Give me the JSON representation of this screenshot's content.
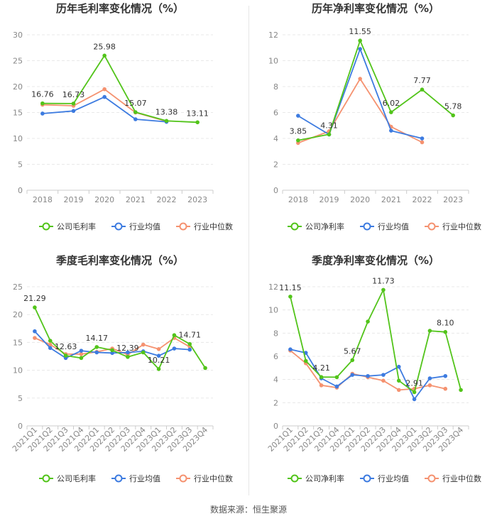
{
  "colors": {
    "company": "#52c41a",
    "industry_avg": "#3d7be0",
    "industry_median": "#f59270",
    "grid": "#e8e8e8",
    "axis_text": "#888888"
  },
  "source": "数据来源：恒生聚源",
  "chart_data": [
    {
      "type": "line",
      "title": "历年毛利率变化情况（%）",
      "categories": [
        "2018",
        "2019",
        "2020",
        "2021",
        "2022",
        "2023"
      ],
      "ylim": [
        0,
        30
      ],
      "yticks": [
        0,
        5,
        10,
        15,
        20,
        25,
        30
      ],
      "legend_position": "bottom",
      "series": [
        {
          "name": "公司毛利率",
          "color": "#52c41a",
          "values": [
            16.76,
            16.73,
            25.98,
            15.07,
            13.38,
            13.11
          ]
        },
        {
          "name": "行业均值",
          "color": "#3d7be0",
          "values": [
            14.8,
            15.3,
            18.0,
            13.7,
            13.2,
            null
          ]
        },
        {
          "name": "行业中位数",
          "color": "#f59270",
          "values": [
            16.5,
            16.3,
            19.5,
            15.0,
            13.3,
            null
          ]
        }
      ],
      "labels": [
        {
          "index": 0,
          "value": 16.76,
          "text": "16.76"
        },
        {
          "index": 1,
          "value": 16.73,
          "text": "16.73"
        },
        {
          "index": 2,
          "value": 25.98,
          "text": "25.98"
        },
        {
          "index": 3,
          "value": 15.07,
          "text": "15.07"
        },
        {
          "index": 4,
          "value": 13.38,
          "text": "13.38"
        },
        {
          "index": 5,
          "value": 13.11,
          "text": "13.11"
        }
      ]
    },
    {
      "type": "line",
      "title": "历年净利率变化情况（%）",
      "categories": [
        "2018",
        "2019",
        "2020",
        "2021",
        "2022",
        "2023"
      ],
      "ylim": [
        0,
        12
      ],
      "yticks": [
        0,
        2,
        4,
        6,
        8,
        10,
        12
      ],
      "legend_position": "bottom",
      "series": [
        {
          "name": "公司净利率",
          "color": "#52c41a",
          "values": [
            3.85,
            4.31,
            11.55,
            6.02,
            7.77,
            5.78
          ]
        },
        {
          "name": "行业均值",
          "color": "#3d7be0",
          "values": [
            5.75,
            4.3,
            10.9,
            4.6,
            4.0,
            null
          ]
        },
        {
          "name": "行业中位数",
          "color": "#f59270",
          "values": [
            3.65,
            4.55,
            8.6,
            4.9,
            3.7,
            null
          ]
        }
      ],
      "labels": [
        {
          "index": 0,
          "value": 3.85,
          "text": "3.85"
        },
        {
          "index": 1,
          "value": 4.31,
          "text": "4.31"
        },
        {
          "index": 2,
          "value": 11.55,
          "text": "11.55"
        },
        {
          "index": 3,
          "value": 6.02,
          "text": "6.02"
        },
        {
          "index": 4,
          "value": 7.77,
          "text": "7.77"
        },
        {
          "index": 5,
          "value": 5.78,
          "text": "5.78"
        }
      ]
    },
    {
      "type": "line",
      "title": "季度毛利率变化情况（%）",
      "categories": [
        "2021Q1",
        "2021Q2",
        "2021Q3",
        "2021Q4",
        "2022Q1",
        "2022Q2",
        "2022Q3",
        "2022Q4",
        "2023Q1",
        "2023Q2",
        "2023Q3",
        "2023Q4"
      ],
      "ylim": [
        0,
        25
      ],
      "yticks": [
        0,
        5,
        10,
        15,
        20,
        25
      ],
      "legend_position": "bottom",
      "series": [
        {
          "name": "公司毛利率",
          "color": "#52c41a",
          "values": [
            21.29,
            15.3,
            12.63,
            12.2,
            14.17,
            13.6,
            12.39,
            13.2,
            10.21,
            16.3,
            14.71,
            10.4
          ]
        },
        {
          "name": "行业均值",
          "color": "#3d7be0",
          "values": [
            17.0,
            14.0,
            12.2,
            13.5,
            13.2,
            13.1,
            13.2,
            13.4,
            12.6,
            13.9,
            13.7,
            null
          ]
        },
        {
          "name": "行业中位数",
          "color": "#f59270",
          "values": [
            15.8,
            14.6,
            12.9,
            12.9,
            13.3,
            13.9,
            12.8,
            14.6,
            13.8,
            15.8,
            14.2,
            null
          ]
        }
      ],
      "labels": [
        {
          "index": 0,
          "value": 21.29,
          "text": "21.29"
        },
        {
          "index": 2,
          "value": 12.63,
          "text": "12.63"
        },
        {
          "index": 4,
          "value": 14.17,
          "text": "14.17"
        },
        {
          "index": 6,
          "value": 12.39,
          "text": "12.39"
        },
        {
          "index": 8,
          "value": 10.21,
          "text": "10.21"
        },
        {
          "index": 10,
          "value": 14.71,
          "text": "14.71"
        }
      ]
    },
    {
      "type": "line",
      "title": "季度净利率变化情况（%）",
      "categories": [
        "2021Q1",
        "2021Q2",
        "2021Q3",
        "2021Q4",
        "2022Q1",
        "2022Q2",
        "2022Q3",
        "2022Q4",
        "2023Q1",
        "2023Q2",
        "2023Q3",
        "2023Q4"
      ],
      "ylim": [
        0,
        12
      ],
      "yticks": [
        0,
        2,
        4,
        6,
        8,
        10,
        12
      ],
      "legend_position": "bottom",
      "series": [
        {
          "name": "公司净利率",
          "color": "#52c41a",
          "values": [
            11.15,
            5.6,
            4.21,
            4.2,
            5.67,
            9.0,
            11.73,
            3.9,
            2.91,
            8.2,
            8.1,
            3.1
          ]
        },
        {
          "name": "行业均值",
          "color": "#3d7be0",
          "values": [
            6.6,
            6.3,
            4.1,
            3.4,
            4.4,
            4.3,
            4.4,
            5.1,
            2.3,
            4.1,
            4.3,
            null
          ]
        },
        {
          "name": "行业中位数",
          "color": "#f59270",
          "values": [
            6.5,
            5.4,
            3.5,
            3.3,
            4.5,
            4.2,
            3.9,
            3.1,
            3.2,
            3.5,
            3.2,
            null
          ]
        }
      ],
      "labels": [
        {
          "index": 0,
          "value": 11.15,
          "text": "11.15"
        },
        {
          "index": 2,
          "value": 4.21,
          "text": "4.21"
        },
        {
          "index": 4,
          "value": 5.67,
          "text": "5.67"
        },
        {
          "index": 6,
          "value": 11.73,
          "text": "11.73"
        },
        {
          "index": 8,
          "value": 2.91,
          "text": "2.91"
        },
        {
          "index": 10,
          "value": 8.1,
          "text": "8.10"
        }
      ]
    }
  ]
}
